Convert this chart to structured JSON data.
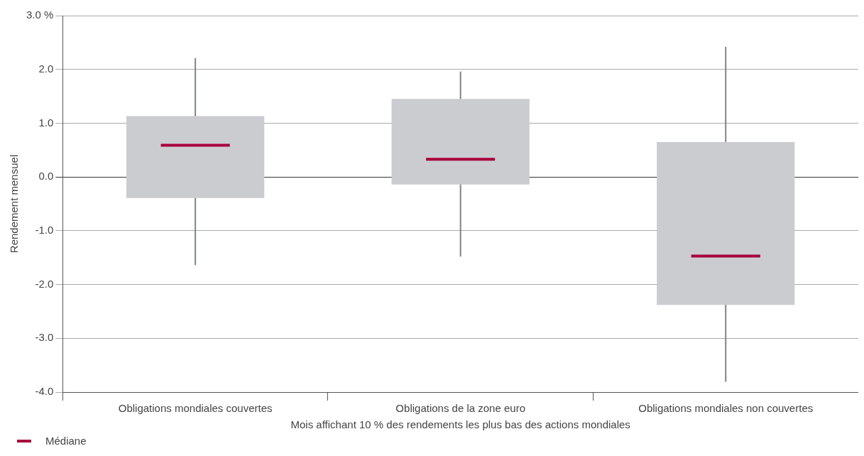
{
  "chart_data": {
    "type": "box",
    "xlabel": "Mois affichant 10 % des rendements les plus bas des actions mondiales",
    "ylabel": "Rendement mensuel",
    "categories": [
      "Obligations mondiales couvertes",
      "Obligations de la zone euro",
      "Obligations mondiales non couvertes"
    ],
    "series": [
      {
        "name": "Médiane",
        "color": "#a8003b",
        "colors": [
          "#cbccd0",
          "#cbccd0",
          "#cbccd0"
        ],
        "boxes": [
          {
            "low": -1.64,
            "q1": -0.39,
            "median": 0.59,
            "q3": 1.13,
            "high": 2.21
          },
          {
            "low": -1.48,
            "q1": -0.14,
            "median": 0.33,
            "q3": 1.45,
            "high": 1.96
          },
          {
            "low": -3.81,
            "q1": -2.38,
            "median": -1.47,
            "q3": 0.65,
            "high": 2.42
          }
        ]
      }
    ],
    "ylim": [
      -4,
      3
    ],
    "yticks": [
      {
        "value": -4,
        "label": "-4.0"
      },
      {
        "value": -3,
        "label": "-3.0"
      },
      {
        "value": -2,
        "label": "-2.0"
      },
      {
        "value": -1,
        "label": "-1.0"
      },
      {
        "value": 0,
        "label": "0.0"
      },
      {
        "value": 1,
        "label": "1.0"
      },
      {
        "value": 2,
        "label": "2.0"
      },
      {
        "value": 3,
        "label": "3.0 %"
      }
    ],
    "grid": "y",
    "legend": "bottom left"
  }
}
